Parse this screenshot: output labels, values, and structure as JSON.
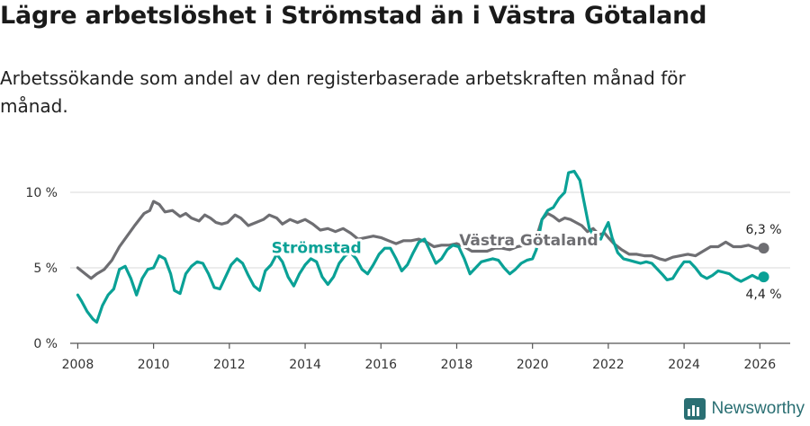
{
  "title": "Lägre arbetslöshet i Strömstad än i Västra Götaland",
  "subtitle": "Arbetssökande som andel av den registerbaserade arbetskraften månad för månad.",
  "brand": {
    "name": "Newsworthy"
  },
  "colors": {
    "stromstad": "#0aa196",
    "vg": "#6e6e72",
    "grid": "#d9d9d9",
    "axis": "#555555"
  },
  "chart_data": {
    "type": "line",
    "title": "Lägre arbetslöshet i Strömstad än i Västra Götaland",
    "xlabel": "",
    "ylabel": "",
    "xlim": [
      2007.8,
      2026.8
    ],
    "ylim": [
      0,
      10
    ],
    "yticks": [
      0,
      5,
      10
    ],
    "ytick_labels": [
      "0 %",
      "5 %",
      "10 %"
    ],
    "xticks": [
      2008,
      2010,
      2012,
      2014,
      2016,
      2018,
      2020,
      2022,
      2024,
      2026
    ],
    "xtick_labels": [
      "2008",
      "2010",
      "2012",
      "2014",
      "2016",
      "2018",
      "2020",
      "2022",
      "2024",
      "2026"
    ],
    "series": [
      {
        "name": "Västra Götaland",
        "color": "#6e6e72",
        "end_label": "6,3 %",
        "points": [
          [
            2008.0,
            5.0
          ],
          [
            2008.2,
            4.6
          ],
          [
            2008.35,
            4.3
          ],
          [
            2008.5,
            4.6
          ],
          [
            2008.7,
            4.9
          ],
          [
            2008.9,
            5.5
          ],
          [
            2009.1,
            6.4
          ],
          [
            2009.3,
            7.1
          ],
          [
            2009.5,
            7.8
          ],
          [
            2009.75,
            8.6
          ],
          [
            2009.9,
            8.8
          ],
          [
            2010.0,
            9.4
          ],
          [
            2010.15,
            9.2
          ],
          [
            2010.3,
            8.7
          ],
          [
            2010.5,
            8.8
          ],
          [
            2010.7,
            8.4
          ],
          [
            2010.85,
            8.6
          ],
          [
            2011.0,
            8.3
          ],
          [
            2011.2,
            8.1
          ],
          [
            2011.35,
            8.5
          ],
          [
            2011.5,
            8.3
          ],
          [
            2011.65,
            8.0
          ],
          [
            2011.8,
            7.9
          ],
          [
            2011.95,
            8.0
          ],
          [
            2012.15,
            8.5
          ],
          [
            2012.3,
            8.3
          ],
          [
            2012.5,
            7.8
          ],
          [
            2012.7,
            8.0
          ],
          [
            2012.9,
            8.2
          ],
          [
            2013.05,
            8.5
          ],
          [
            2013.25,
            8.3
          ],
          [
            2013.4,
            7.9
          ],
          [
            2013.6,
            8.2
          ],
          [
            2013.8,
            8.0
          ],
          [
            2014.0,
            8.2
          ],
          [
            2014.2,
            7.9
          ],
          [
            2014.4,
            7.5
          ],
          [
            2014.6,
            7.6
          ],
          [
            2014.8,
            7.4
          ],
          [
            2015.0,
            7.6
          ],
          [
            2015.2,
            7.3
          ],
          [
            2015.4,
            6.9
          ],
          [
            2015.6,
            7.0
          ],
          [
            2015.8,
            7.1
          ],
          [
            2016.0,
            7.0
          ],
          [
            2016.2,
            6.8
          ],
          [
            2016.4,
            6.6
          ],
          [
            2016.6,
            6.8
          ],
          [
            2016.8,
            6.8
          ],
          [
            2017.0,
            6.9
          ],
          [
            2017.2,
            6.7
          ],
          [
            2017.4,
            6.4
          ],
          [
            2017.6,
            6.5
          ],
          [
            2017.8,
            6.5
          ],
          [
            2018.0,
            6.6
          ],
          [
            2018.2,
            6.4
          ],
          [
            2018.4,
            6.1
          ],
          [
            2018.6,
            6.1
          ],
          [
            2018.8,
            6.1
          ],
          [
            2019.0,
            6.3
          ],
          [
            2019.2,
            6.3
          ],
          [
            2019.4,
            6.2
          ],
          [
            2019.6,
            6.4
          ],
          [
            2019.8,
            6.5
          ],
          [
            2020.0,
            6.8
          ],
          [
            2020.1,
            7.0
          ],
          [
            2020.25,
            8.2
          ],
          [
            2020.4,
            8.6
          ],
          [
            2020.55,
            8.4
          ],
          [
            2020.7,
            8.1
          ],
          [
            2020.85,
            8.3
          ],
          [
            2021.0,
            8.2
          ],
          [
            2021.15,
            8.0
          ],
          [
            2021.3,
            7.8
          ],
          [
            2021.45,
            7.4
          ],
          [
            2021.6,
            7.6
          ],
          [
            2021.75,
            7.2
          ],
          [
            2021.9,
            7.3
          ],
          [
            2022.0,
            7.0
          ],
          [
            2022.15,
            6.6
          ],
          [
            2022.35,
            6.2
          ],
          [
            2022.55,
            5.9
          ],
          [
            2022.75,
            5.9
          ],
          [
            2022.95,
            5.8
          ],
          [
            2023.15,
            5.8
          ],
          [
            2023.35,
            5.6
          ],
          [
            2023.5,
            5.5
          ],
          [
            2023.7,
            5.7
          ],
          [
            2023.9,
            5.8
          ],
          [
            2024.1,
            5.9
          ],
          [
            2024.3,
            5.8
          ],
          [
            2024.5,
            6.1
          ],
          [
            2024.7,
            6.4
          ],
          [
            2024.9,
            6.4
          ],
          [
            2025.1,
            6.7
          ],
          [
            2025.3,
            6.4
          ],
          [
            2025.5,
            6.4
          ],
          [
            2025.7,
            6.5
          ],
          [
            2025.9,
            6.3
          ],
          [
            2026.1,
            6.3
          ]
        ]
      },
      {
        "name": "Strömstad",
        "color": "#0aa196",
        "end_label": "4,4 %",
        "points": [
          [
            2008.0,
            3.2
          ],
          [
            2008.1,
            2.8
          ],
          [
            2008.25,
            2.1
          ],
          [
            2008.4,
            1.6
          ],
          [
            2008.5,
            1.4
          ],
          [
            2008.65,
            2.5
          ],
          [
            2008.8,
            3.2
          ],
          [
            2008.95,
            3.6
          ],
          [
            2009.1,
            4.9
          ],
          [
            2009.25,
            5.1
          ],
          [
            2009.4,
            4.3
          ],
          [
            2009.55,
            3.2
          ],
          [
            2009.7,
            4.3
          ],
          [
            2009.85,
            4.9
          ],
          [
            2010.0,
            5.0
          ],
          [
            2010.15,
            5.8
          ],
          [
            2010.3,
            5.6
          ],
          [
            2010.45,
            4.6
          ],
          [
            2010.55,
            3.5
          ],
          [
            2010.7,
            3.3
          ],
          [
            2010.85,
            4.6
          ],
          [
            2011.0,
            5.1
          ],
          [
            2011.15,
            5.4
          ],
          [
            2011.3,
            5.3
          ],
          [
            2011.45,
            4.6
          ],
          [
            2011.6,
            3.7
          ],
          [
            2011.75,
            3.6
          ],
          [
            2011.9,
            4.4
          ],
          [
            2012.05,
            5.2
          ],
          [
            2012.2,
            5.6
          ],
          [
            2012.35,
            5.3
          ],
          [
            2012.5,
            4.5
          ],
          [
            2012.65,
            3.8
          ],
          [
            2012.8,
            3.5
          ],
          [
            2012.95,
            4.8
          ],
          [
            2013.1,
            5.2
          ],
          [
            2013.25,
            5.9
          ],
          [
            2013.4,
            5.4
          ],
          [
            2013.55,
            4.4
          ],
          [
            2013.7,
            3.8
          ],
          [
            2013.85,
            4.6
          ],
          [
            2014.0,
            5.2
          ],
          [
            2014.15,
            5.6
          ],
          [
            2014.3,
            5.4
          ],
          [
            2014.45,
            4.4
          ],
          [
            2014.6,
            3.9
          ],
          [
            2014.75,
            4.4
          ],
          [
            2014.9,
            5.3
          ],
          [
            2015.05,
            5.8
          ],
          [
            2015.2,
            6.0
          ],
          [
            2015.35,
            5.6
          ],
          [
            2015.5,
            4.9
          ],
          [
            2015.65,
            4.6
          ],
          [
            2015.8,
            5.2
          ],
          [
            2015.95,
            5.9
          ],
          [
            2016.1,
            6.3
          ],
          [
            2016.25,
            6.3
          ],
          [
            2016.4,
            5.6
          ],
          [
            2016.55,
            4.8
          ],
          [
            2016.7,
            5.2
          ],
          [
            2016.85,
            6.0
          ],
          [
            2017.0,
            6.7
          ],
          [
            2017.15,
            6.9
          ],
          [
            2017.3,
            6.1
          ],
          [
            2017.45,
            5.3
          ],
          [
            2017.6,
            5.6
          ],
          [
            2017.75,
            6.2
          ],
          [
            2017.9,
            6.5
          ],
          [
            2018.05,
            6.4
          ],
          [
            2018.2,
            5.6
          ],
          [
            2018.35,
            4.6
          ],
          [
            2018.5,
            5.0
          ],
          [
            2018.65,
            5.4
          ],
          [
            2018.8,
            5.5
          ],
          [
            2018.95,
            5.6
          ],
          [
            2019.1,
            5.5
          ],
          [
            2019.25,
            5.0
          ],
          [
            2019.4,
            4.6
          ],
          [
            2019.55,
            4.9
          ],
          [
            2019.7,
            5.3
          ],
          [
            2019.85,
            5.5
          ],
          [
            2020.0,
            5.6
          ],
          [
            2020.1,
            6.2
          ],
          [
            2020.25,
            8.2
          ],
          [
            2020.4,
            8.8
          ],
          [
            2020.55,
            9.0
          ],
          [
            2020.7,
            9.6
          ],
          [
            2020.85,
            10.0
          ],
          [
            2020.95,
            11.3
          ],
          [
            2021.1,
            11.4
          ],
          [
            2021.25,
            10.8
          ],
          [
            2021.35,
            9.5
          ],
          [
            2021.5,
            7.6
          ],
          [
            2021.65,
            7.0
          ],
          [
            2021.8,
            6.9
          ],
          [
            2021.9,
            7.5
          ],
          [
            2022.0,
            8.0
          ],
          [
            2022.1,
            7.0
          ],
          [
            2022.25,
            6.0
          ],
          [
            2022.4,
            5.6
          ],
          [
            2022.55,
            5.5
          ],
          [
            2022.7,
            5.4
          ],
          [
            2022.85,
            5.3
          ],
          [
            2023.0,
            5.4
          ],
          [
            2023.15,
            5.3
          ],
          [
            2023.3,
            4.9
          ],
          [
            2023.45,
            4.5
          ],
          [
            2023.55,
            4.2
          ],
          [
            2023.7,
            4.3
          ],
          [
            2023.85,
            4.9
          ],
          [
            2024.0,
            5.4
          ],
          [
            2024.15,
            5.4
          ],
          [
            2024.3,
            5.0
          ],
          [
            2024.45,
            4.5
          ],
          [
            2024.6,
            4.3
          ],
          [
            2024.75,
            4.5
          ],
          [
            2024.9,
            4.8
          ],
          [
            2025.05,
            4.7
          ],
          [
            2025.2,
            4.6
          ],
          [
            2025.35,
            4.3
          ],
          [
            2025.5,
            4.1
          ],
          [
            2025.65,
            4.3
          ],
          [
            2025.8,
            4.5
          ],
          [
            2025.95,
            4.3
          ],
          [
            2026.1,
            4.4
          ]
        ]
      }
    ]
  }
}
